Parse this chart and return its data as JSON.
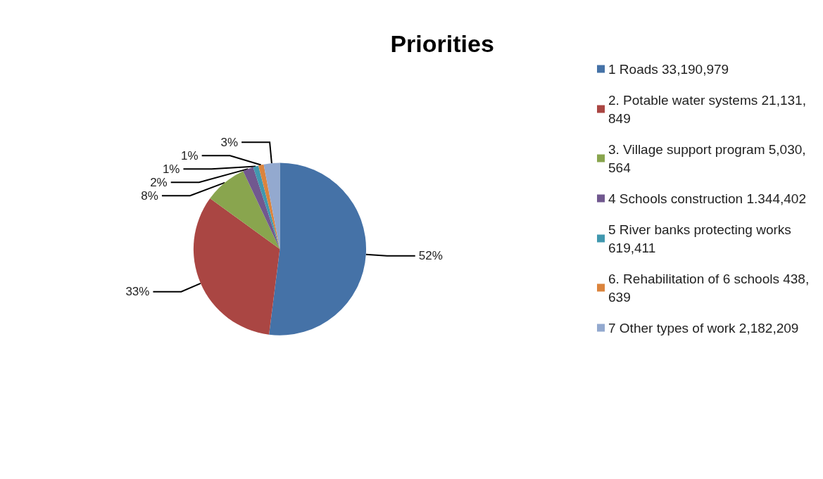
{
  "chart_data": {
    "type": "pie",
    "title": "Priorities",
    "categories": [
      "1 Roads 33,190,979",
      "2. Potable water systems 21,131,849",
      "3. Village support program 5,030,564",
      "4 Schools construction 1.344,402",
      "5 River banks protecting works 619,411",
      "6. Rehabilitation of 6 schools 438,639",
      "7 Other types of work 2,182,209"
    ],
    "values": [
      52,
      33,
      8,
      2,
      1,
      1,
      3
    ],
    "value_labels": [
      "52%",
      "33%",
      "8%",
      "2%",
      "1%",
      "1%",
      "3%"
    ],
    "colors": [
      "#4572a7",
      "#aa4643",
      "#89a54e",
      "#71588f",
      "#4198af",
      "#db843d",
      "#93a9cf"
    ],
    "legend": "right"
  }
}
